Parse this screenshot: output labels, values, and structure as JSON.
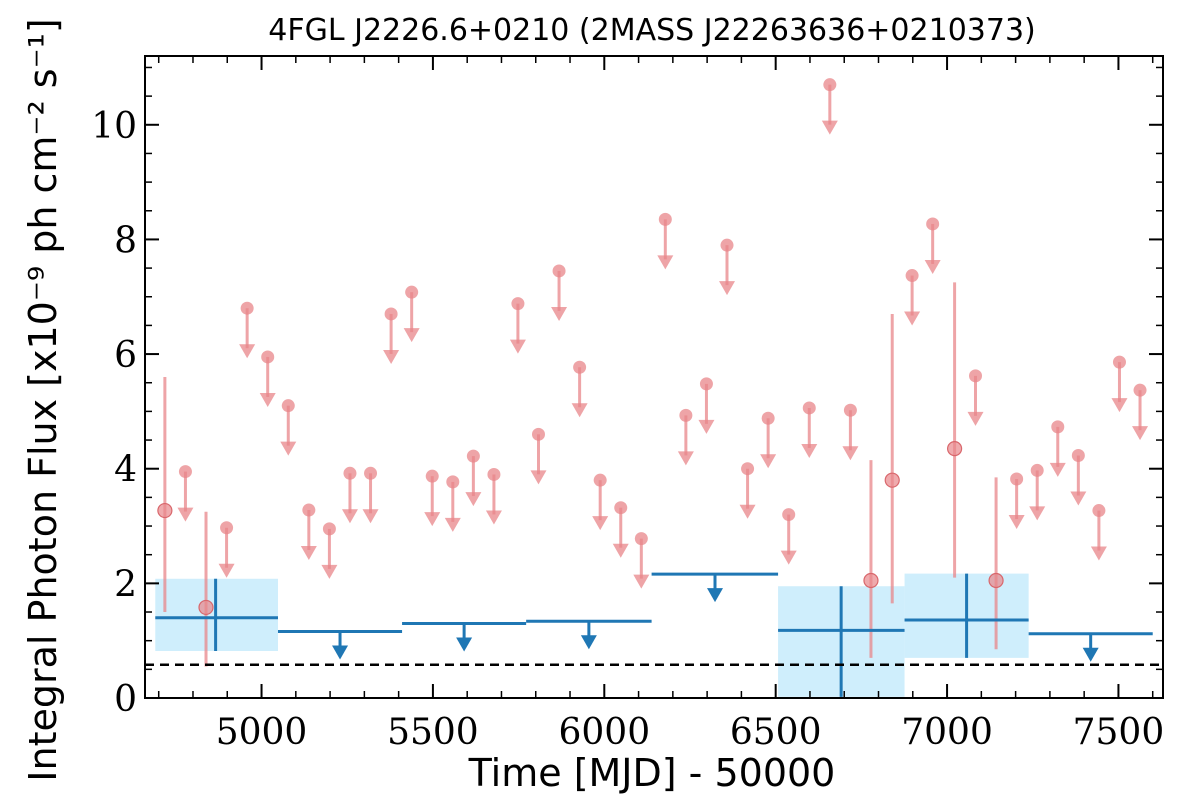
{
  "chart_data": {
    "type": "scatter",
    "title": "4FGL J2226.6+0210 (2MASS J22263636+0210373)",
    "xlabel": "Time [MJD] - 50000",
    "ylabel": "Integral Photon Flux [x10⁻⁹ ph cm⁻² s⁻¹]",
    "xlim": [
      4660,
      7630
    ],
    "ylim": [
      0,
      11.2
    ],
    "xticks": [
      5000,
      5500,
      6000,
      6500,
      7000,
      7500
    ],
    "yticks": [
      0,
      2,
      4,
      6,
      8,
      10
    ],
    "grid": false,
    "colors": {
      "short_bins": "#e8868a",
      "long_bins": "#1f77b4",
      "band_fill": "#cfeefc",
      "baseline": "#000000"
    },
    "baseline_y": 0.58,
    "short_bins": {
      "detections": [
        {
          "x": 4718,
          "y": 3.27,
          "ylo": 1.5,
          "yhi": 5.6
        },
        {
          "x": 4838,
          "y": 1.58,
          "ylo": 0.55,
          "yhi": 3.25
        },
        {
          "x": 6778,
          "y": 2.05,
          "ylo": 0.7,
          "yhi": 4.15
        },
        {
          "x": 6840,
          "y": 3.8,
          "ylo": 1.65,
          "yhi": 6.7
        },
        {
          "x": 7022,
          "y": 4.35,
          "ylo": 2.1,
          "yhi": 7.25
        },
        {
          "x": 7143,
          "y": 2.05,
          "ylo": 0.85,
          "yhi": 3.85
        }
      ],
      "upper_limits": [
        {
          "x": 4778,
          "y": 3.95
        },
        {
          "x": 4898,
          "y": 2.97
        },
        {
          "x": 4958,
          "y": 6.8
        },
        {
          "x": 5018,
          "y": 5.95
        },
        {
          "x": 5078,
          "y": 5.1
        },
        {
          "x": 5138,
          "y": 3.28
        },
        {
          "x": 5198,
          "y": 2.95
        },
        {
          "x": 5258,
          "y": 3.92
        },
        {
          "x": 5318,
          "y": 3.92
        },
        {
          "x": 5378,
          "y": 6.7
        },
        {
          "x": 5438,
          "y": 7.08
        },
        {
          "x": 5498,
          "y": 3.87
        },
        {
          "x": 5558,
          "y": 3.77
        },
        {
          "x": 5618,
          "y": 4.22
        },
        {
          "x": 5678,
          "y": 3.9
        },
        {
          "x": 5748,
          "y": 6.88
        },
        {
          "x": 5808,
          "y": 4.6
        },
        {
          "x": 5868,
          "y": 7.45
        },
        {
          "x": 5928,
          "y": 5.77
        },
        {
          "x": 5988,
          "y": 3.8
        },
        {
          "x": 6048,
          "y": 3.32
        },
        {
          "x": 6108,
          "y": 2.78
        },
        {
          "x": 6178,
          "y": 8.35
        },
        {
          "x": 6238,
          "y": 4.93
        },
        {
          "x": 6298,
          "y": 5.48
        },
        {
          "x": 6358,
          "y": 7.9
        },
        {
          "x": 6418,
          "y": 4.0
        },
        {
          "x": 6478,
          "y": 4.88
        },
        {
          "x": 6538,
          "y": 3.2
        },
        {
          "x": 6598,
          "y": 5.06
        },
        {
          "x": 6658,
          "y": 10.7
        },
        {
          "x": 6718,
          "y": 5.02
        },
        {
          "x": 6898,
          "y": 7.37
        },
        {
          "x": 6958,
          "y": 8.27
        },
        {
          "x": 7083,
          "y": 5.62
        },
        {
          "x": 7203,
          "y": 3.82
        },
        {
          "x": 7263,
          "y": 3.97
        },
        {
          "x": 7323,
          "y": 4.73
        },
        {
          "x": 7383,
          "y": 4.23
        },
        {
          "x": 7443,
          "y": 3.27
        },
        {
          "x": 7503,
          "y": 5.86
        },
        {
          "x": 7563,
          "y": 5.37
        }
      ]
    },
    "long_bins": {
      "detections": [
        {
          "x0": 4690,
          "x1": 5048,
          "xc": 4866,
          "y": 1.4,
          "ylo": 0.82,
          "yhi": 2.08
        },
        {
          "x0": 6507,
          "x1": 6876,
          "xc": 6691,
          "y": 1.18,
          "ylo": 0.02,
          "yhi": 1.95
        },
        {
          "x0": 6876,
          "x1": 7238,
          "xc": 7057,
          "y": 1.36,
          "ylo": 0.7,
          "yhi": 2.17
        }
      ],
      "upper_limits": [
        {
          "x0": 5048,
          "x1": 5410,
          "xc": 5229,
          "y": 1.16
        },
        {
          "x0": 5410,
          "x1": 5772,
          "xc": 5591,
          "y": 1.3
        },
        {
          "x0": 5772,
          "x1": 6138,
          "xc": 5955,
          "y": 1.34
        },
        {
          "x0": 6138,
          "x1": 6507,
          "xc": 6323,
          "y": 2.16
        },
        {
          "x0": 7238,
          "x1": 7600,
          "xc": 7419,
          "y": 1.12
        }
      ]
    }
  }
}
